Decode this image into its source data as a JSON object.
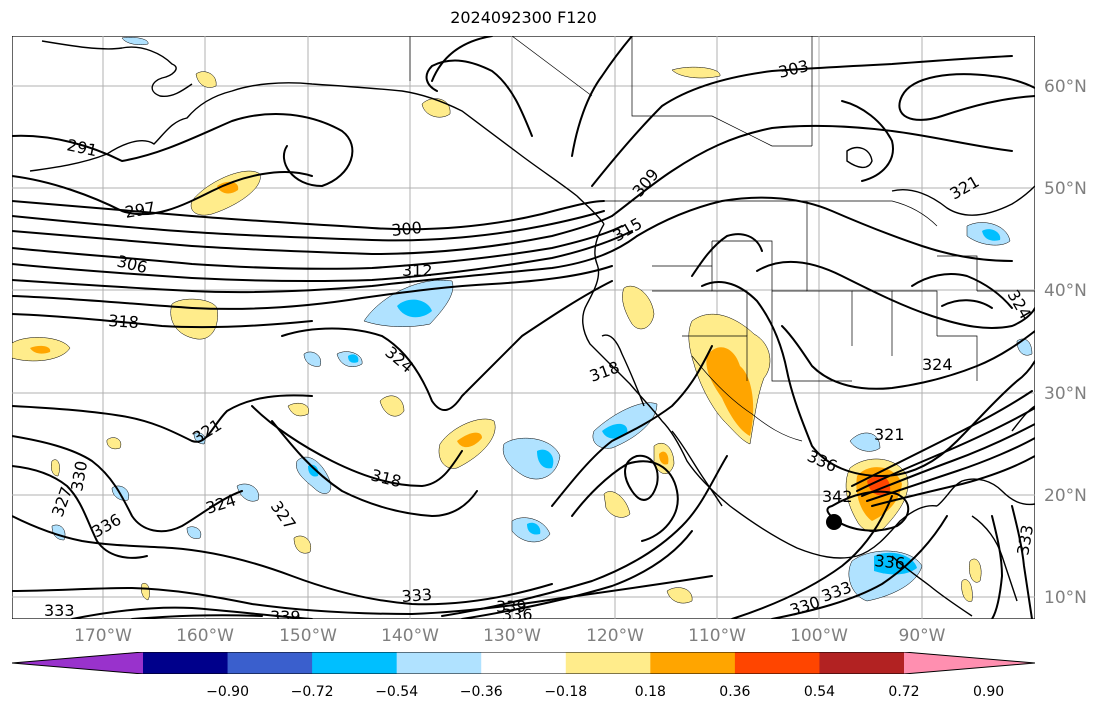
{
  "title": "2024092300 F120",
  "longitude_ticks": [
    "170°W",
    "160°W",
    "150°W",
    "140°W",
    "130°W",
    "120°W",
    "110°W",
    "100°W",
    "90°W"
  ],
  "latitude_ticks": [
    "60°N",
    "50°N",
    "40°N",
    "30°N",
    "20°N",
    "10°N"
  ],
  "contour_labels": [
    "291",
    "297",
    "300",
    "306",
    "312",
    "318",
    "324",
    "321",
    "303",
    "309",
    "315",
    "318",
    "321",
    "324",
    "327",
    "330",
    "336",
    "324",
    "327",
    "318",
    "333",
    "336",
    "339",
    "333",
    "339",
    "330",
    "333",
    "336",
    "342",
    "336",
    "333",
    "321",
    "324"
  ],
  "colorbar": {
    "labels": [
      "−0.90",
      "−0.72",
      "−0.54",
      "−0.36",
      "−0.18",
      "0.18",
      "0.36",
      "0.54",
      "0.72",
      "0.90"
    ],
    "colors": [
      "#9932cc",
      "#00008b",
      "#3a5fcd",
      "#00bfff",
      "#b0e2ff",
      "#ffffff",
      "#ffec8b",
      "#ffa500",
      "#ff4500",
      "#b22222",
      "#ff8fb0"
    ]
  },
  "colors": {
    "positive_light": "#ffec8b",
    "positive_mid": "#ffa500",
    "positive_high": "#ff4500",
    "negative_light": "#b0e2ff",
    "negative_mid": "#00bfff",
    "contour": "#000000"
  },
  "marker": "storm-center-dot"
}
